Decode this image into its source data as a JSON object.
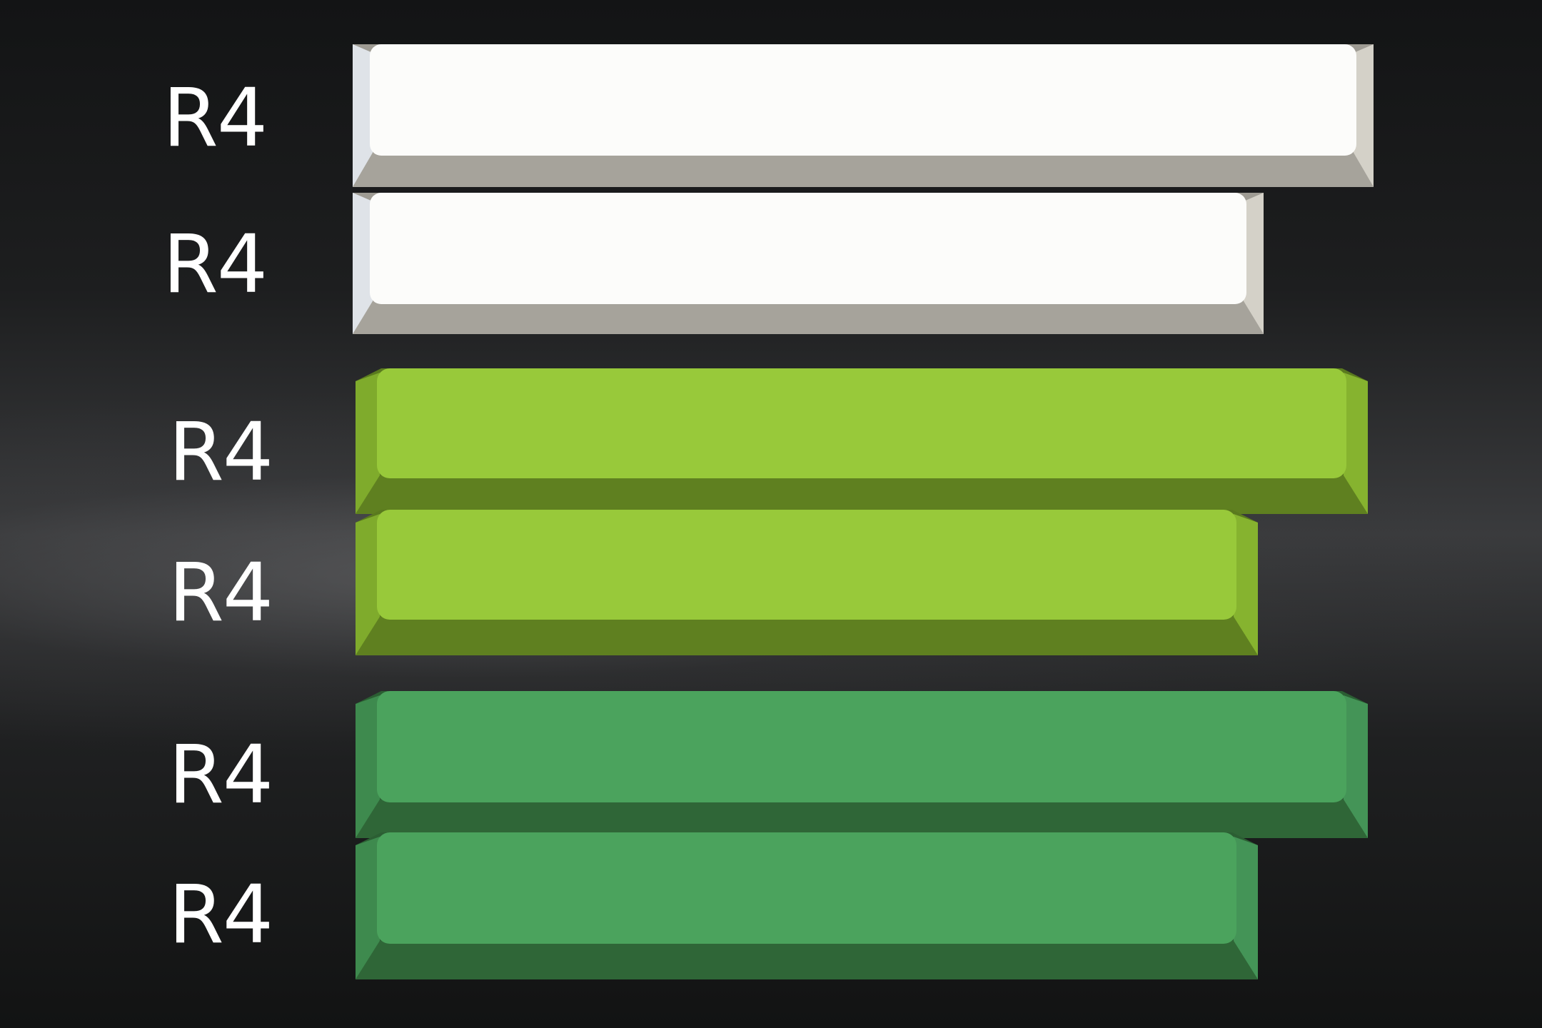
{
  "rows": [
    {
      "label": "R4",
      "color": "white",
      "size": "long"
    },
    {
      "label": "R4",
      "color": "white",
      "size": "short"
    },
    {
      "label": "R4",
      "color": "lime-green",
      "size": "long"
    },
    {
      "label": "R4",
      "color": "lime-green",
      "size": "short"
    },
    {
      "label": "R4",
      "color": "medium-green",
      "size": "long"
    },
    {
      "label": "R4",
      "color": "medium-green",
      "size": "short"
    }
  ],
  "palette": {
    "white": {
      "top": "#fcfcfa",
      "front": "#a6a39b",
      "side": "#dfe2e6"
    },
    "lime-green": {
      "top": "#98c93a",
      "front": "#5f8020",
      "side": "#7faa2c"
    },
    "medium-green": {
      "top": "#4ba35d",
      "front": "#2f6637",
      "side": "#3f8c4f"
    }
  }
}
